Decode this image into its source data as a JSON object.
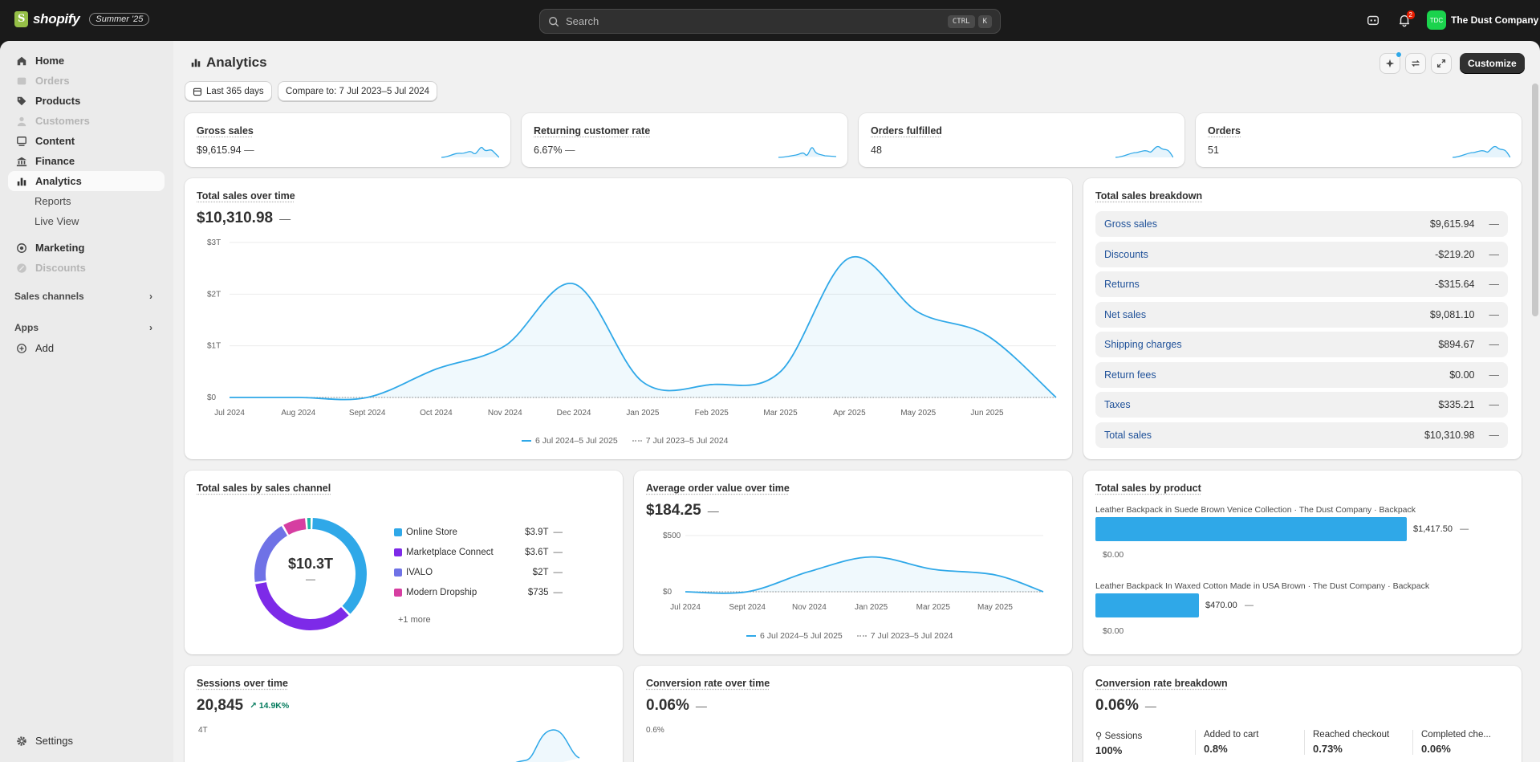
{
  "topbar": {
    "logo_text": "shopify",
    "edition": "Summer '25",
    "search_placeholder": "Search",
    "shortcut_keys": [
      "CTRL",
      "K"
    ],
    "notification_count": "2",
    "store_initials": "TDC",
    "store_name": "The Dust Company"
  },
  "sidebar": {
    "items": [
      {
        "label": "Home",
        "icon": "home-icon",
        "disabled": false
      },
      {
        "label": "Orders",
        "icon": "inbox-icon",
        "disabled": true
      },
      {
        "label": "Products",
        "icon": "tag-icon",
        "disabled": false
      },
      {
        "label": "Customers",
        "icon": "person-icon",
        "disabled": true
      },
      {
        "label": "Content",
        "icon": "content-icon",
        "disabled": false
      },
      {
        "label": "Finance",
        "icon": "bank-icon",
        "disabled": false
      },
      {
        "label": "Analytics",
        "icon": "bar-chart-icon",
        "disabled": false,
        "active": true
      }
    ],
    "analytics_sub": [
      "Reports",
      "Live View"
    ],
    "items2": [
      {
        "label": "Marketing",
        "icon": "target-icon",
        "disabled": false
      },
      {
        "label": "Discounts",
        "icon": "discount-icon",
        "disabled": true
      }
    ],
    "sales_channels": "Sales channels",
    "apps": "Apps",
    "add": "Add",
    "settings": "Settings"
  },
  "header": {
    "title": "Analytics",
    "date_range": "Last 365 days",
    "compare": "Compare to: 7 Jul 2023–5 Jul 2024",
    "customize": "Customize"
  },
  "kpis": [
    {
      "title": "Gross sales",
      "value": "$9,615.94",
      "dash": "—"
    },
    {
      "title": "Returning customer rate",
      "value": "6.67%",
      "dash": "—"
    },
    {
      "title": "Orders fulfilled",
      "value": "48",
      "dash": ""
    },
    {
      "title": "Orders",
      "value": "51",
      "dash": ""
    }
  ],
  "total_sales": {
    "title": "Total sales over time",
    "value": "$10,310.98",
    "dash": "—",
    "legend_current": "6 Jul 2024–5 Jul 2025",
    "legend_previous": "7 Jul 2023–5 Jul 2024"
  },
  "breakdown": {
    "title": "Total sales breakdown",
    "rows": [
      {
        "label": "Gross sales",
        "value": "$9,615.94",
        "dash": "—"
      },
      {
        "label": "Discounts",
        "value": "-$219.20",
        "dash": "—"
      },
      {
        "label": "Returns",
        "value": "-$315.64",
        "dash": "—"
      },
      {
        "label": "Net sales",
        "value": "$9,081.10",
        "dash": "—"
      },
      {
        "label": "Shipping charges",
        "value": "$894.67",
        "dash": "—"
      },
      {
        "label": "Return fees",
        "value": "$0.00",
        "dash": "—"
      },
      {
        "label": "Taxes",
        "value": "$335.21",
        "dash": "—"
      },
      {
        "label": "Total sales",
        "value": "$10,310.98",
        "dash": "—"
      }
    ]
  },
  "channels": {
    "title": "Total sales by sales channel",
    "center_value": "$10.3T",
    "center_dash": "—",
    "legend": [
      {
        "label": "Online Store",
        "value": "$3.9T",
        "dash": "—",
        "color": "#2fa8e8"
      },
      {
        "label": "Marketplace Connect",
        "value": "$3.6T",
        "dash": "—",
        "color": "#7d2ae8"
      },
      {
        "label": "IVALO",
        "value": "$2T",
        "dash": "—",
        "color": "#6f72e6"
      },
      {
        "label": "Modern Dropship",
        "value": "$735",
        "dash": "—",
        "color": "#d63ea1"
      }
    ],
    "more": "+1 more"
  },
  "aov": {
    "title": "Average order value over time",
    "value": "$184.25",
    "dash": "—",
    "legend_current": "6 Jul 2024–5 Jul 2025",
    "legend_previous": "7 Jul 2023–5 Jul 2024"
  },
  "products": {
    "title": "Total sales by product",
    "items": [
      {
        "name": "Leather Backpack in Suede Brown Venice Collection · The Dust Company · Backpack",
        "value": "$1,417.50",
        "dash": "—",
        "previous": "$0.00",
        "fraction": 1.0
      },
      {
        "name": "Leather Backpack In Waxed Cotton Made in USA Brown · The Dust Company · Backpack",
        "value": "$470.00",
        "dash": "—",
        "previous": "$0.00",
        "fraction": 0.332
      }
    ]
  },
  "sessions": {
    "title": "Sessions over time",
    "value": "20,845",
    "change": "14.9K%",
    "y_top": "4T"
  },
  "conversion": {
    "title": "Conversion rate over time",
    "value": "0.06%",
    "dash": "—",
    "y_top": "0.6%"
  },
  "funnel": {
    "title": "Conversion rate breakdown",
    "value": "0.06%",
    "dash": "—",
    "steps": [
      {
        "label": "Sessions",
        "value": "100%"
      },
      {
        "label": "Added to cart",
        "value": "0.8%"
      },
      {
        "label": "Reached checkout",
        "value": "0.73%"
      },
      {
        "label": "Completed che...",
        "value": "0.06%"
      }
    ]
  },
  "chart_data": [
    {
      "type": "line",
      "title": "Total sales over time",
      "x": [
        "Jul 2024",
        "Aug 2024",
        "Sept 2024",
        "Oct 2024",
        "Nov 2024",
        "Dec 2024",
        "Jan 2025",
        "Feb 2025",
        "Mar 2025",
        "Apr 2025",
        "May 2025",
        "Jun 2025"
      ],
      "y_ticks": [
        "$0",
        "$1T",
        "$2T",
        "$3T"
      ],
      "ylim": [
        0,
        3
      ],
      "series": [
        {
          "name": "6 Jul 2024–5 Jul 2025",
          "values": [
            0,
            0,
            0,
            0.55,
            1.0,
            2.2,
            0.3,
            0.25,
            0.5,
            2.7,
            1.65,
            1.2
          ],
          "color": "#2fa8e8"
        },
        {
          "name": "7 Jul 2023–5 Jul 2024",
          "values": [
            0,
            0,
            0,
            0,
            0,
            0,
            0,
            0,
            0,
            0,
            0,
            0
          ],
          "color": "#b5b5b5"
        }
      ]
    },
    {
      "type": "line",
      "title": "Average order value over time",
      "x": [
        "Jul 2024",
        "Sept 2024",
        "Nov 2024",
        "Jan 2025",
        "Mar 2025",
        "May 2025"
      ],
      "y_ticks": [
        "$0",
        "$500"
      ],
      "ylim": [
        0,
        500
      ],
      "series": [
        {
          "name": "6 Jul 2024–5 Jul 2025",
          "values": [
            0,
            0,
            180,
            310,
            200,
            150
          ],
          "color": "#2fa8e8"
        },
        {
          "name": "7 Jul 2023–5 Jul 2024",
          "values": [
            0,
            0,
            0,
            0,
            0,
            0
          ],
          "color": "#b5b5b5"
        }
      ]
    },
    {
      "type": "pie",
      "title": "Total sales by sales channel",
      "categories": [
        "Online Store",
        "Marketplace Connect",
        "IVALO",
        "Modern Dropship",
        "Other"
      ],
      "values": [
        3.9,
        3.6,
        2.0,
        0.735,
        0.165
      ]
    }
  ]
}
